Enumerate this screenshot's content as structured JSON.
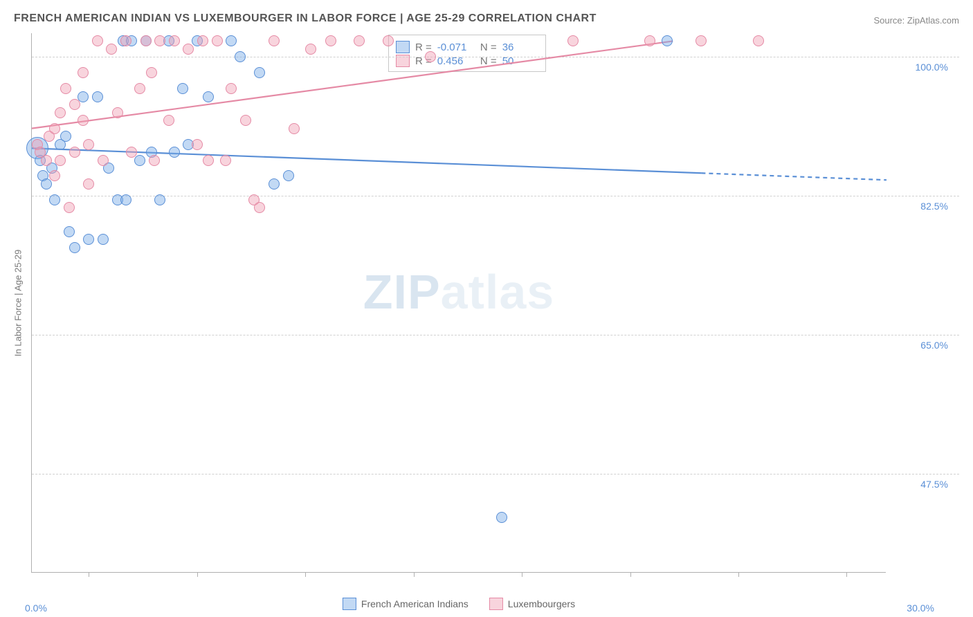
{
  "title": "FRENCH AMERICAN INDIAN VS LUXEMBOURGER IN LABOR FORCE | AGE 25-29 CORRELATION CHART",
  "source_prefix": "Source: ",
  "source_name": "ZipAtlas.com",
  "ylabel": "In Labor Force | Age 25-29",
  "watermark_bold": "ZIP",
  "watermark_rest": "atlas",
  "chart": {
    "type": "scatter",
    "background_color": "#ffffff",
    "grid_color": "#d0d0d0",
    "border_color": "#b0b0b0",
    "xlim": [
      0,
      30
    ],
    "ylim": [
      35,
      103
    ],
    "x_ticks": [
      0,
      30
    ],
    "x_tick_labels": [
      "0.0%",
      "30.0%"
    ],
    "x_minor_ticks": [
      2,
      5.8,
      9.6,
      13.4,
      17.2,
      21,
      24.8,
      28.6
    ],
    "y_ticks": [
      47.5,
      65.0,
      82.5,
      100.0
    ],
    "y_tick_labels": [
      "47.5%",
      "65.0%",
      "82.5%",
      "100.0%"
    ],
    "point_radius_default": 8,
    "series": [
      {
        "name": "French American Indians",
        "color_fill": "rgba(120,170,230,0.45)",
        "color_stroke": "#5a8fd6",
        "R": "-0.071",
        "N": "36",
        "trend": {
          "x1": 0,
          "y1": 88.5,
          "x2": 30,
          "y2": 84.5,
          "dash_from_x": 23.5
        },
        "points": [
          {
            "x": 0.2,
            "y": 88.5,
            "r": 16
          },
          {
            "x": 0.3,
            "y": 87,
            "r": 8
          },
          {
            "x": 0.4,
            "y": 85,
            "r": 8
          },
          {
            "x": 0.5,
            "y": 84,
            "r": 8
          },
          {
            "x": 0.7,
            "y": 86,
            "r": 8
          },
          {
            "x": 0.8,
            "y": 82,
            "r": 8
          },
          {
            "x": 1.0,
            "y": 89,
            "r": 8
          },
          {
            "x": 1.2,
            "y": 90,
            "r": 8
          },
          {
            "x": 1.3,
            "y": 78,
            "r": 8
          },
          {
            "x": 1.5,
            "y": 76,
            "r": 8
          },
          {
            "x": 1.8,
            "y": 95,
            "r": 8
          },
          {
            "x": 2.0,
            "y": 77,
            "r": 8
          },
          {
            "x": 2.3,
            "y": 95,
            "r": 8
          },
          {
            "x": 2.5,
            "y": 77,
            "r": 8
          },
          {
            "x": 2.7,
            "y": 86,
            "r": 8
          },
          {
            "x": 3.0,
            "y": 82,
            "r": 8
          },
          {
            "x": 3.2,
            "y": 102,
            "r": 8
          },
          {
            "x": 3.3,
            "y": 82,
            "r": 8
          },
          {
            "x": 3.5,
            "y": 102,
            "r": 8
          },
          {
            "x": 3.8,
            "y": 87,
            "r": 8
          },
          {
            "x": 4.0,
            "y": 102,
            "r": 8
          },
          {
            "x": 4.2,
            "y": 88,
            "r": 8
          },
          {
            "x": 4.5,
            "y": 82,
            "r": 8
          },
          {
            "x": 4.8,
            "y": 102,
            "r": 8
          },
          {
            "x": 5.0,
            "y": 88,
            "r": 8
          },
          {
            "x": 5.3,
            "y": 96,
            "r": 8
          },
          {
            "x": 5.5,
            "y": 89,
            "r": 8
          },
          {
            "x": 5.8,
            "y": 102,
            "r": 8
          },
          {
            "x": 6.2,
            "y": 95,
            "r": 8
          },
          {
            "x": 7.0,
            "y": 102,
            "r": 8
          },
          {
            "x": 7.3,
            "y": 100,
            "r": 8
          },
          {
            "x": 8.0,
            "y": 98,
            "r": 8
          },
          {
            "x": 8.5,
            "y": 84,
            "r": 8
          },
          {
            "x": 9.0,
            "y": 85,
            "r": 8
          },
          {
            "x": 16.5,
            "y": 42,
            "r": 8
          },
          {
            "x": 22.3,
            "y": 102,
            "r": 8
          }
        ]
      },
      {
        "name": "Luxembourgers",
        "color_fill": "rgba(240,160,180,0.45)",
        "color_stroke": "#e58aa5",
        "R": "0.456",
        "N": "50",
        "trend": {
          "x1": 0,
          "y1": 91,
          "x2": 22.5,
          "y2": 102,
          "dash_from_x": null
        },
        "points": [
          {
            "x": 0.2,
            "y": 89,
            "r": 8
          },
          {
            "x": 0.3,
            "y": 88,
            "r": 8
          },
          {
            "x": 0.5,
            "y": 87,
            "r": 8
          },
          {
            "x": 0.6,
            "y": 90,
            "r": 8
          },
          {
            "x": 0.8,
            "y": 91,
            "r": 8
          },
          {
            "x": 0.8,
            "y": 85,
            "r": 8
          },
          {
            "x": 1.0,
            "y": 93,
            "r": 8
          },
          {
            "x": 1.0,
            "y": 87,
            "r": 8
          },
          {
            "x": 1.2,
            "y": 96,
            "r": 8
          },
          {
            "x": 1.3,
            "y": 81,
            "r": 8
          },
          {
            "x": 1.5,
            "y": 94,
            "r": 8
          },
          {
            "x": 1.5,
            "y": 88,
            "r": 8
          },
          {
            "x": 1.8,
            "y": 92,
            "r": 8
          },
          {
            "x": 1.8,
            "y": 98,
            "r": 8
          },
          {
            "x": 2.0,
            "y": 84,
            "r": 8
          },
          {
            "x": 2.0,
            "y": 89,
            "r": 8
          },
          {
            "x": 2.3,
            "y": 102,
            "r": 8
          },
          {
            "x": 2.5,
            "y": 87,
            "r": 8
          },
          {
            "x": 2.8,
            "y": 101,
            "r": 8
          },
          {
            "x": 3.0,
            "y": 93,
            "r": 8
          },
          {
            "x": 3.3,
            "y": 102,
            "r": 8
          },
          {
            "x": 3.5,
            "y": 88,
            "r": 8
          },
          {
            "x": 3.8,
            "y": 96,
            "r": 8
          },
          {
            "x": 4.0,
            "y": 102,
            "r": 8
          },
          {
            "x": 4.2,
            "y": 98,
            "r": 8
          },
          {
            "x": 4.3,
            "y": 87,
            "r": 8
          },
          {
            "x": 4.5,
            "y": 102,
            "r": 8
          },
          {
            "x": 4.8,
            "y": 92,
            "r": 8
          },
          {
            "x": 5.0,
            "y": 102,
            "r": 8
          },
          {
            "x": 5.5,
            "y": 101,
            "r": 8
          },
          {
            "x": 5.8,
            "y": 89,
            "r": 8
          },
          {
            "x": 6.0,
            "y": 102,
            "r": 8
          },
          {
            "x": 6.2,
            "y": 87,
            "r": 8
          },
          {
            "x": 6.5,
            "y": 102,
            "r": 8
          },
          {
            "x": 6.8,
            "y": 87,
            "r": 8
          },
          {
            "x": 7.0,
            "y": 96,
            "r": 8
          },
          {
            "x": 7.5,
            "y": 92,
            "r": 8
          },
          {
            "x": 7.8,
            "y": 82,
            "r": 8
          },
          {
            "x": 8.0,
            "y": 81,
            "r": 8
          },
          {
            "x": 8.5,
            "y": 102,
            "r": 8
          },
          {
            "x": 9.2,
            "y": 91,
            "r": 8
          },
          {
            "x": 9.8,
            "y": 101,
            "r": 8
          },
          {
            "x": 10.5,
            "y": 102,
            "r": 8
          },
          {
            "x": 11.5,
            "y": 102,
            "r": 8
          },
          {
            "x": 12.5,
            "y": 102,
            "r": 8
          },
          {
            "x": 14.0,
            "y": 100,
            "r": 8
          },
          {
            "x": 19.0,
            "y": 102,
            "r": 8
          },
          {
            "x": 21.7,
            "y": 102,
            "r": 8
          },
          {
            "x": 23.5,
            "y": 102,
            "r": 8
          },
          {
            "x": 25.5,
            "y": 102,
            "r": 8
          }
        ]
      }
    ]
  }
}
